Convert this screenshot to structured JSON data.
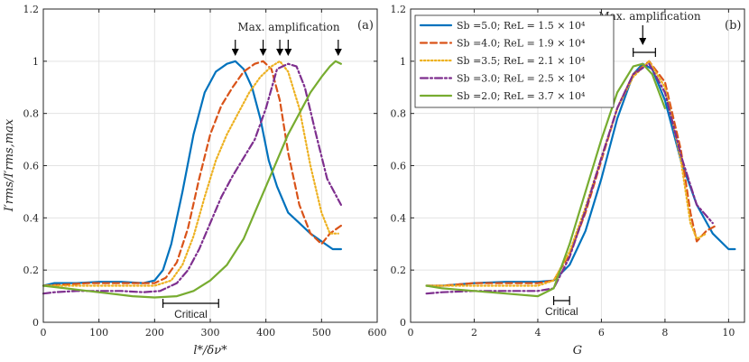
{
  "colors": {
    "series": [
      "#0072BD",
      "#D95319",
      "#EDB120",
      "#7E2F8E",
      "#77AC30"
    ],
    "grid": "#e3e3e3",
    "axis": "#262626"
  },
  "chart_data": [
    {
      "type": "line",
      "panel_label": "(a)",
      "xlabel": "l*/δν*",
      "ylabel": "I′rms/I′rms,max",
      "xlim": [
        0,
        600
      ],
      "ylim": [
        0,
        1.2
      ],
      "xticks": [
        "0",
        "100",
        "200",
        "300",
        "400",
        "500",
        "600"
      ],
      "yticks": [
        "0",
        "0.2",
        "0.4",
        "0.6",
        "0.8",
        "1",
        "1.2"
      ],
      "grid": true,
      "annotation": "Max. amplification",
      "arrows_x": [
        345,
        395,
        425,
        440,
        530
      ],
      "critical_label": "Critical",
      "critical_range": [
        215,
        315
      ],
      "series": [
        {
          "name": "Sb=5.0",
          "style": "solid",
          "x": [
            0,
            20,
            60,
            100,
            140,
            180,
            200,
            215,
            230,
            250,
            270,
            290,
            310,
            330,
            345,
            360,
            375,
            390,
            405,
            420,
            440,
            460,
            480,
            500,
            520,
            535
          ],
          "y": [
            0.14,
            0.15,
            0.15,
            0.155,
            0.155,
            0.15,
            0.16,
            0.2,
            0.3,
            0.5,
            0.72,
            0.88,
            0.96,
            0.99,
            1.0,
            0.97,
            0.9,
            0.78,
            0.62,
            0.52,
            0.42,
            0.38,
            0.34,
            0.31,
            0.28,
            0.28
          ]
        },
        {
          "name": "Sb=4.0",
          "style": "dashed",
          "x": [
            0,
            40,
            80,
            120,
            160,
            200,
            220,
            240,
            260,
            280,
            300,
            320,
            340,
            360,
            380,
            395,
            410,
            425,
            440,
            460,
            480,
            500,
            515,
            535
          ],
          "y": [
            0.14,
            0.145,
            0.15,
            0.15,
            0.15,
            0.15,
            0.17,
            0.23,
            0.36,
            0.55,
            0.72,
            0.83,
            0.9,
            0.96,
            0.99,
            1.0,
            0.97,
            0.85,
            0.65,
            0.45,
            0.34,
            0.3,
            0.34,
            0.37
          ]
        },
        {
          "name": "Sb=3.5",
          "style": "dotted",
          "x": [
            0,
            40,
            80,
            120,
            160,
            200,
            230,
            250,
            270,
            290,
            310,
            330,
            350,
            370,
            390,
            410,
            425,
            440,
            460,
            480,
            500,
            515,
            530
          ],
          "y": [
            0.14,
            0.14,
            0.14,
            0.14,
            0.14,
            0.14,
            0.16,
            0.22,
            0.33,
            0.48,
            0.62,
            0.72,
            0.8,
            0.88,
            0.94,
            0.98,
            1.0,
            0.96,
            0.82,
            0.6,
            0.42,
            0.34,
            0.34
          ]
        },
        {
          "name": "Sb=3.0",
          "style": "dashdot",
          "x": [
            0,
            20,
            60,
            100,
            140,
            180,
            210,
            240,
            260,
            280,
            300,
            320,
            340,
            360,
            380,
            400,
            420,
            440,
            455,
            470,
            490,
            510,
            535
          ],
          "y": [
            0.11,
            0.115,
            0.12,
            0.12,
            0.12,
            0.115,
            0.12,
            0.15,
            0.2,
            0.28,
            0.38,
            0.48,
            0.56,
            0.63,
            0.7,
            0.82,
            0.97,
            0.99,
            0.98,
            0.9,
            0.72,
            0.55,
            0.45
          ]
        },
        {
          "name": "Sb=2.0",
          "style": "solid",
          "x": [
            0,
            40,
            80,
            120,
            160,
            200,
            240,
            270,
            300,
            330,
            360,
            380,
            400,
            420,
            440,
            460,
            480,
            500,
            515,
            525,
            535
          ],
          "y": [
            0.14,
            0.13,
            0.12,
            0.11,
            0.1,
            0.095,
            0.1,
            0.12,
            0.16,
            0.22,
            0.32,
            0.42,
            0.52,
            0.62,
            0.72,
            0.8,
            0.88,
            0.94,
            0.98,
            1.0,
            0.99
          ]
        }
      ]
    },
    {
      "type": "line",
      "panel_label": "(b)",
      "xlabel": "G",
      "ylabel": "",
      "xlim": [
        0,
        10.5
      ],
      "ylim": [
        0,
        1.2
      ],
      "xticks": [
        "0",
        "2",
        "4",
        "6",
        "8",
        "10"
      ],
      "yticks": [
        "0",
        "0.2",
        "0.4",
        "0.6",
        "0.8",
        "1",
        "1.2"
      ],
      "grid": true,
      "annotation": "Max. amplification",
      "arrow_x": 7.3,
      "bracket_range": [
        7.0,
        7.7
      ],
      "critical_label": "Critical",
      "critical_range": [
        4.5,
        5.0
      ],
      "legend": [
        {
          "label": "Sb =5.0; ReL = 1.5 × 10⁴"
        },
        {
          "label": "Sb =4.0; ReL = 1.9 × 10⁴"
        },
        {
          "label": "Sb =3.5; ReL = 2.1 × 10⁴"
        },
        {
          "label": "Sb =3.0; ReL = 2.5 × 10⁴"
        },
        {
          "label": "Sb =2.0; ReL = 3.7 × 10⁴"
        }
      ],
      "series": [
        {
          "name": "Sb=5.0",
          "style": "solid",
          "x": [
            0.5,
            1,
            2,
            3,
            4,
            4.5,
            5,
            5.5,
            6,
            6.5,
            7,
            7.3,
            7.6,
            8,
            8.5,
            9,
            9.5,
            10,
            10.2
          ],
          "y": [
            0.14,
            0.14,
            0.15,
            0.155,
            0.155,
            0.16,
            0.22,
            0.35,
            0.55,
            0.78,
            0.95,
            0.99,
            0.97,
            0.85,
            0.62,
            0.45,
            0.34,
            0.28,
            0.28
          ]
        },
        {
          "name": "Sb=4.0",
          "style": "dashed",
          "x": [
            0.5,
            1,
            2,
            3,
            4,
            4.5,
            5,
            5.5,
            6,
            6.5,
            7,
            7.5,
            8,
            8.5,
            8.8,
            9,
            9.3,
            9.6
          ],
          "y": [
            0.14,
            0.14,
            0.15,
            0.15,
            0.15,
            0.16,
            0.26,
            0.42,
            0.62,
            0.82,
            0.95,
            1.0,
            0.92,
            0.66,
            0.42,
            0.31,
            0.35,
            0.37
          ]
        },
        {
          "name": "Sb=3.5",
          "style": "dotted",
          "x": [
            0.5,
            1,
            2,
            3,
            4,
            4.5,
            5,
            5.5,
            6,
            6.5,
            7,
            7.5,
            8,
            8.5,
            8.8,
            9,
            9.3
          ],
          "y": [
            0.14,
            0.14,
            0.14,
            0.14,
            0.14,
            0.16,
            0.27,
            0.44,
            0.63,
            0.82,
            0.94,
            1.0,
            0.9,
            0.62,
            0.38,
            0.32,
            0.34
          ]
        },
        {
          "name": "Sb=3.0",
          "style": "dashdot",
          "x": [
            0.5,
            1,
            2,
            3,
            4,
            4.5,
            5,
            5.5,
            6,
            6.5,
            7,
            7.5,
            8,
            8.5,
            9,
            9.5
          ],
          "y": [
            0.11,
            0.115,
            0.12,
            0.12,
            0.12,
            0.13,
            0.25,
            0.43,
            0.63,
            0.82,
            0.95,
            0.99,
            0.88,
            0.64,
            0.45,
            0.38
          ]
        },
        {
          "name": "Sb=2.0",
          "style": "solid",
          "x": [
            0.5,
            1,
            2,
            3,
            4,
            4.5,
            5,
            5.5,
            6,
            6.5,
            7,
            7.3,
            7.6,
            8
          ],
          "y": [
            0.14,
            0.13,
            0.12,
            0.11,
            0.1,
            0.13,
            0.3,
            0.5,
            0.7,
            0.88,
            0.98,
            0.99,
            0.95,
            0.82
          ]
        }
      ]
    }
  ]
}
